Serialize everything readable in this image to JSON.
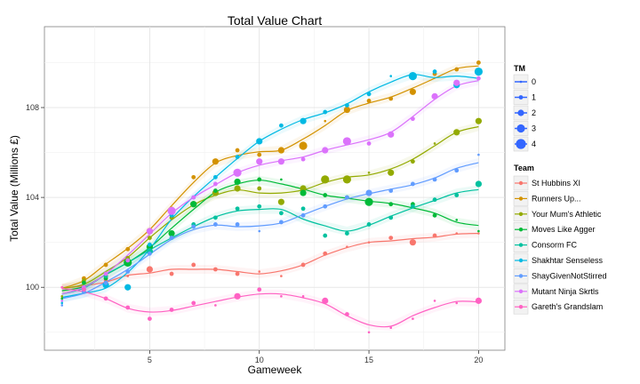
{
  "chart_data": {
    "type": "scatter",
    "title": "Total Value Chart",
    "xlabel": "Gameweek",
    "ylabel": "Total Value (Millions £)",
    "xlim": [
      0.2,
      21.2
    ],
    "ylim": [
      97.2,
      111.6
    ],
    "x_ticks": [
      5,
      10,
      15,
      20
    ],
    "y_ticks": [
      100,
      104,
      108
    ],
    "grid": true,
    "smooth_lines": true,
    "size_legend": {
      "title": "TM",
      "entries": [
        "0",
        "1",
        "2",
        "3",
        "4"
      ]
    },
    "legend_title": "Team",
    "x": [
      1,
      2,
      3,
      4,
      5,
      6,
      7,
      8,
      9,
      10,
      11,
      12,
      13,
      14,
      15,
      16,
      17,
      18,
      19,
      20
    ],
    "series": [
      {
        "name": "St Hubbins XI",
        "color": "#F8766D",
        "values": [
          100,
          99.9,
          100.3,
          100.5,
          100.8,
          100.6,
          101.0,
          100.8,
          100.6,
          100.7,
          100.5,
          101.0,
          101.5,
          101.8,
          102.0,
          102.2,
          102.0,
          102.3,
          102.4,
          102.4
        ],
        "tm": [
          0,
          1,
          1,
          0,
          2,
          1,
          1,
          1,
          1,
          0,
          0,
          1,
          1,
          0,
          0,
          1,
          2,
          1,
          0,
          0
        ]
      },
      {
        "name": "Runners Up...",
        "color": "#D39200",
        "values": [
          99.5,
          100.4,
          101.0,
          101.7,
          102.5,
          103.5,
          104.9,
          105.6,
          106.1,
          105.9,
          106.1,
          106.3,
          107.4,
          107.9,
          108.3,
          108.4,
          108.7,
          109.5,
          109.7,
          110.0
        ],
        "tm": [
          0,
          1,
          1,
          1,
          2,
          1,
          1,
          2,
          1,
          1,
          2,
          3,
          0,
          2,
          1,
          1,
          2,
          1,
          1,
          1
        ]
      },
      {
        "name": "Your Mum's Athletic",
        "color": "#93AA00",
        "values": [
          99.6,
          100.3,
          100.5,
          101.3,
          102.2,
          103.1,
          103.7,
          104.2,
          104.4,
          104.4,
          103.8,
          104.4,
          104.8,
          104.8,
          105.1,
          105.1,
          105.6,
          106.4,
          106.9,
          107.4
        ],
        "tm": [
          0,
          1,
          1,
          1,
          1,
          1,
          2,
          2,
          2,
          1,
          2,
          2,
          3,
          3,
          0,
          2,
          1,
          0,
          2,
          2
        ]
      },
      {
        "name": "Moves Like Agger",
        "color": "#00BA38",
        "values": [
          99.5,
          100.2,
          100.4,
          101.1,
          101.8,
          102.4,
          103.7,
          104.3,
          104.7,
          104.8,
          104.8,
          104.2,
          104.1,
          104.0,
          103.8,
          103.7,
          103.7,
          103.2,
          103.0,
          102.5
        ],
        "tm": [
          0,
          1,
          1,
          3,
          2,
          2,
          2,
          1,
          2,
          1,
          0,
          2,
          1,
          1,
          3,
          1,
          1,
          1,
          0,
          0
        ]
      },
      {
        "name": "Consorm FC",
        "color": "#00C19F",
        "values": [
          99.4,
          100.0,
          100.5,
          101.2,
          101.6,
          102.2,
          102.8,
          103.1,
          103.5,
          103.6,
          103.3,
          103.5,
          102.3,
          102.4,
          102.8,
          103.1,
          103.6,
          103.9,
          104.1,
          104.6
        ],
        "tm": [
          0,
          1,
          1,
          1,
          2,
          1,
          1,
          1,
          1,
          1,
          1,
          1,
          1,
          1,
          1,
          1,
          1,
          1,
          1,
          2
        ]
      },
      {
        "name": "Shakhtar Senseless",
        "color": "#00B9E3",
        "values": [
          99.3,
          99.8,
          100.1,
          100.0,
          101.9,
          103.2,
          104.0,
          104.9,
          105.8,
          106.5,
          107.2,
          107.4,
          107.8,
          108.1,
          108.6,
          109.4,
          109.4,
          109.6,
          109.0,
          109.6
        ],
        "tm": [
          0,
          1,
          2,
          2,
          1,
          1,
          1,
          1,
          1,
          2,
          1,
          2,
          1,
          1,
          1,
          0,
          3,
          1,
          2,
          3
        ]
      },
      {
        "name": "ShayGivenNotStirred",
        "color": "#619CFF",
        "values": [
          99.2,
          99.8,
          100.2,
          100.7,
          101.5,
          102.2,
          102.7,
          102.8,
          102.8,
          102.5,
          102.9,
          103.2,
          103.6,
          104.0,
          104.2,
          104.3,
          104.6,
          104.8,
          105.2,
          105.9
        ],
        "tm": [
          0,
          1,
          1,
          1,
          1,
          1,
          1,
          1,
          1,
          0,
          1,
          1,
          1,
          1,
          2,
          1,
          1,
          1,
          1,
          0
        ]
      },
      {
        "name": "Mutant Ninja Skrtls",
        "color": "#DB72FB",
        "values": [
          99.4,
          100.0,
          100.6,
          101.2,
          102.5,
          103.4,
          104.0,
          104.6,
          105.1,
          105.6,
          105.6,
          105.7,
          106.1,
          106.5,
          106.4,
          106.8,
          107.5,
          108.5,
          109.1,
          109.3
        ],
        "tm": [
          0,
          1,
          1,
          1,
          2,
          3,
          1,
          1,
          3,
          2,
          2,
          1,
          2,
          3,
          1,
          2,
          1,
          2,
          2,
          1
        ]
      },
      {
        "name": "Gareth's Grandslam",
        "color": "#FF61C3",
        "values": [
          100,
          99.9,
          99.5,
          99.1,
          98.6,
          99.0,
          99.3,
          99.2,
          99.6,
          99.9,
          99.6,
          99.6,
          99.4,
          98.8,
          98.0,
          98.2,
          98.6,
          99.4,
          99.3,
          99.4
        ],
        "tm": [
          0,
          1,
          1,
          1,
          1,
          1,
          1,
          0,
          2,
          1,
          0,
          0,
          2,
          1,
          0,
          0,
          0,
          0,
          0,
          2
        ]
      }
    ]
  }
}
